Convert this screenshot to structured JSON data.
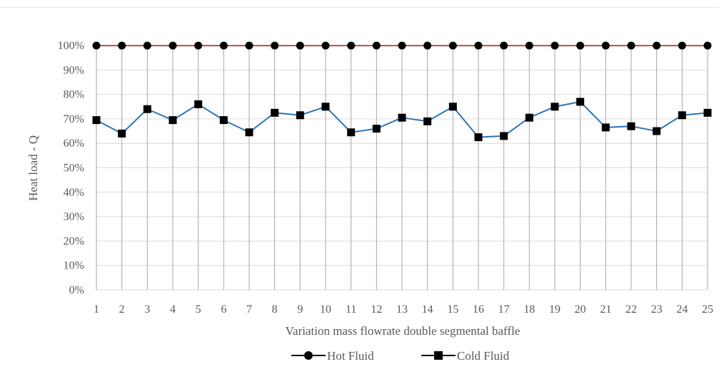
{
  "chart_data": {
    "type": "line",
    "title": "",
    "xlabel": "Variation mass flowrate double segmental baffle",
    "ylabel": "Heat load - Q",
    "categories": [
      "1",
      "2",
      "3",
      "4",
      "5",
      "6",
      "7",
      "8",
      "9",
      "10",
      "11",
      "12",
      "13",
      "14",
      "15",
      "16",
      "17",
      "18",
      "19",
      "20",
      "21",
      "22",
      "23",
      "24",
      "25"
    ],
    "yticks": [
      "0%",
      "10%",
      "20%",
      "30%",
      "40%",
      "50%",
      "60%",
      "70%",
      "80%",
      "90%",
      "100%"
    ],
    "ylim": [
      0,
      100
    ],
    "grid": "vertical and horizontal",
    "legend_position": "bottom",
    "series": [
      {
        "name": "Hot Fluid",
        "marker": "circle",
        "color": "#000000",
        "line_color": "#c0504d",
        "values": [
          100,
          100,
          100,
          100,
          100,
          100,
          100,
          100,
          100,
          100,
          100,
          100,
          100,
          100,
          100,
          100,
          100,
          100,
          100,
          100,
          100,
          100,
          100,
          100,
          100
        ]
      },
      {
        "name": "Cold Fluid",
        "marker": "square",
        "color": "#000000",
        "line_color": "#2e75b6",
        "values": [
          69.5,
          64,
          74,
          69.5,
          76,
          69.5,
          64.5,
          72.5,
          71.5,
          75,
          64.5,
          66,
          70.5,
          69,
          75,
          62.5,
          63,
          70.5,
          75,
          77,
          66.5,
          67,
          65,
          71.5,
          72.5
        ]
      }
    ]
  }
}
